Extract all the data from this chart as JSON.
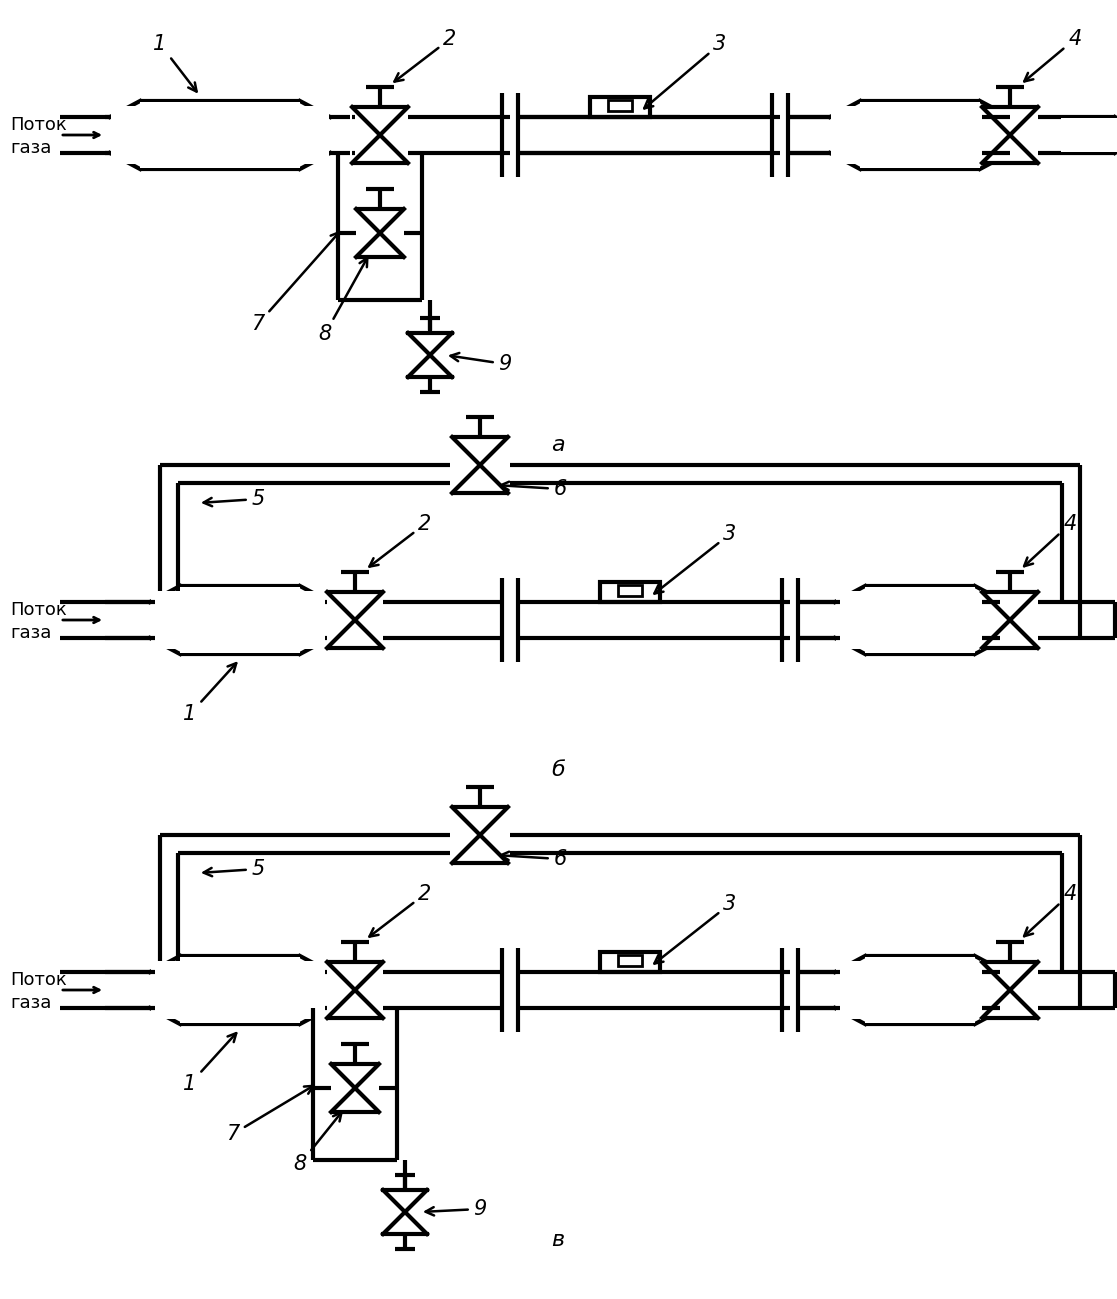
{
  "bg_color": "#ffffff",
  "line_color": "#000000",
  "lw_main": 3.0,
  "lw_med": 2.0,
  "fig_width": 11.17,
  "fig_height": 12.99,
  "labels_a": [
    "1",
    "2",
    "3",
    "4",
    "7",
    "8",
    "9"
  ],
  "labels_b": [
    "5",
    "2",
    "6",
    "3",
    "4",
    "1"
  ],
  "labels_v": [
    "5",
    "2",
    "6",
    "3",
    "4",
    "1",
    "7",
    "8",
    "9"
  ]
}
